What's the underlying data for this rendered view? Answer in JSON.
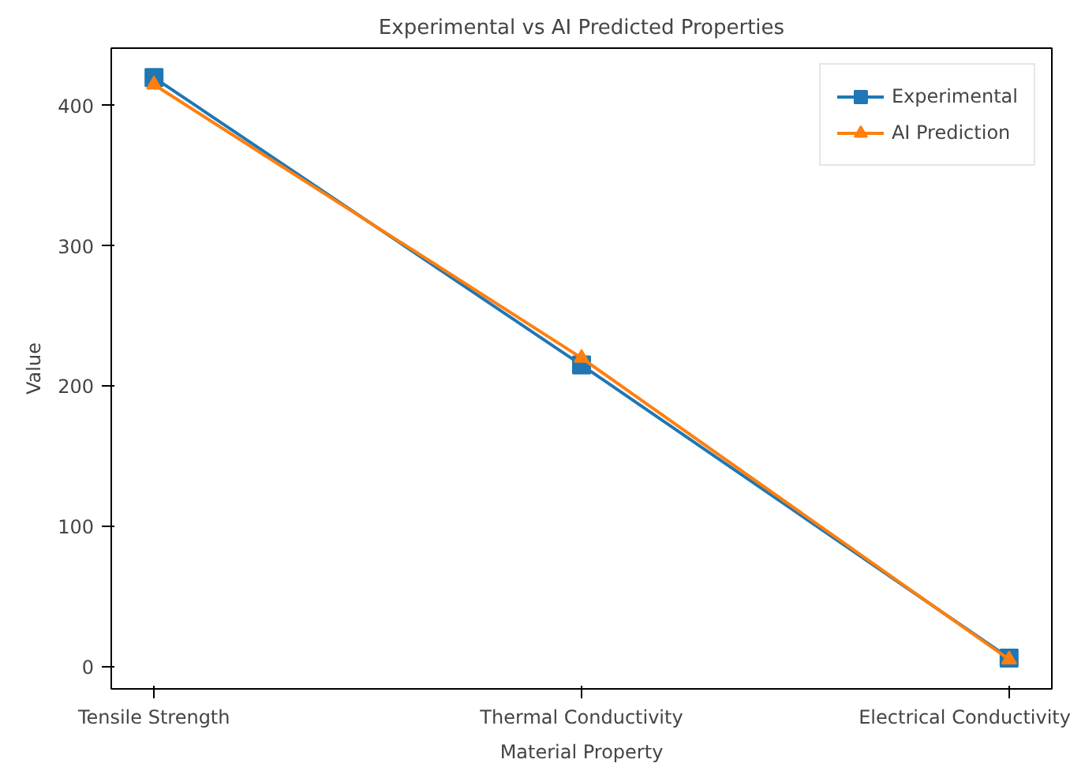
{
  "chart_data": {
    "type": "line",
    "title": "Experimental vs AI Predicted Properties",
    "xlabel": "Material Property",
    "ylabel": "Value",
    "categories": [
      "Tensile Strength",
      "Thermal Conductivity",
      "Electrical Conductivity"
    ],
    "series": [
      {
        "name": "Experimental",
        "color": "#1f77b4",
        "values": [
          420,
          215,
          6
        ],
        "marker": "square"
      },
      {
        "name": "AI Prediction",
        "color": "#ff7f0e",
        "values": [
          415,
          220,
          5
        ],
        "marker": "triangle"
      }
    ],
    "ylim": [
      -16,
      441
    ],
    "yticks": [
      0,
      100,
      200,
      300,
      400
    ],
    "legend": "top right",
    "grid": false
  }
}
